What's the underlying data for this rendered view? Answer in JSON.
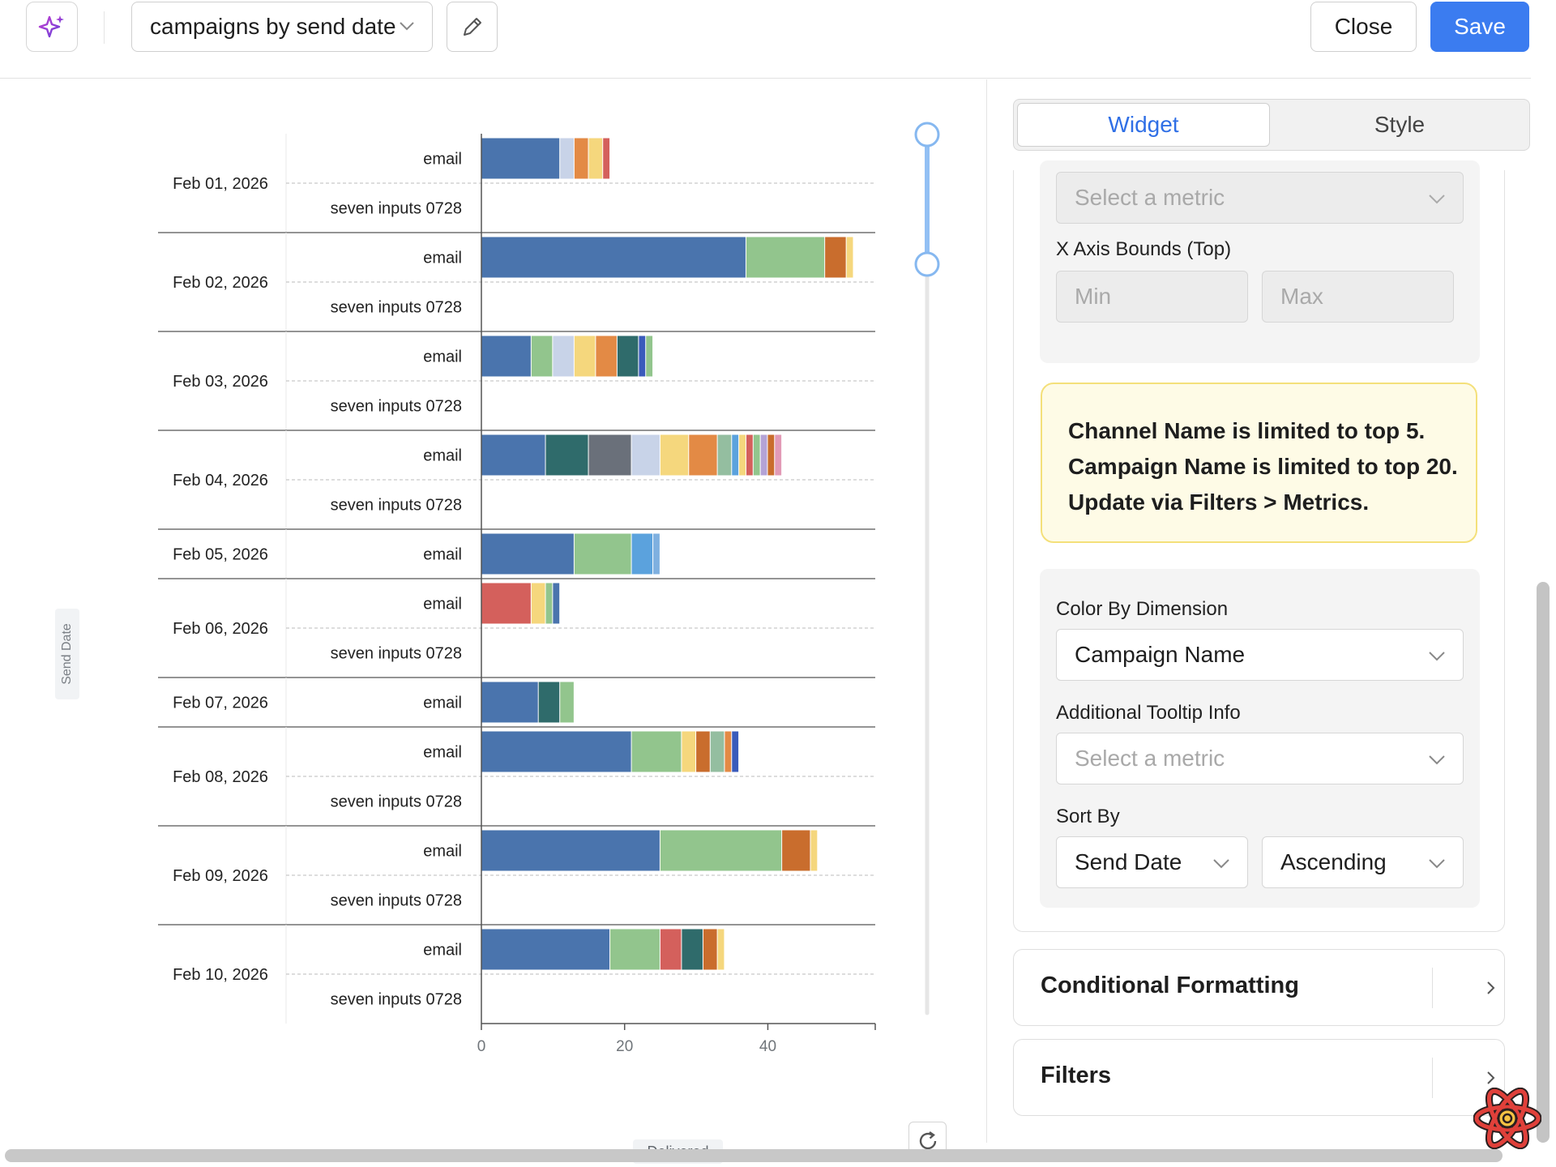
{
  "header": {
    "title": "campaigns by send date",
    "close_label": "Close",
    "save_label": "Save"
  },
  "colors": {
    "accent": "#3b7cf0",
    "warning_bg": "#fefbe6",
    "warning_border": "#f4e07a",
    "series_palette": [
      "#4a74ad",
      "#92c58d",
      "#c8d3e8",
      "#f5d77d",
      "#e38a45",
      "#c96d2d",
      "#2f6b6b",
      "#d4605c",
      "#6a707a",
      "#5ba2dd",
      "#b4a3d6",
      "#e29ab6",
      "#3a5bbb",
      "#94bea0"
    ]
  },
  "chart_data": {
    "type": "bar",
    "orientation": "horizontal",
    "stacked": true,
    "ylabel": "Send Date",
    "xlabel": "Delivered",
    "xlim": [
      0,
      55
    ],
    "x_ticks": [
      0,
      20,
      40
    ],
    "groups": [
      {
        "date": "Feb 01, 2026",
        "rows": [
          {
            "channel": "email",
            "segments": [
              11,
              2,
              2,
              2,
              1
            ],
            "colors": [
              "#4a74ad",
              "#c8d3e8",
              "#e38a45",
              "#f5d77d",
              "#d4605c"
            ]
          },
          {
            "channel": "seven inputs 0728",
            "segments": [],
            "colors": []
          }
        ]
      },
      {
        "date": "Feb 02, 2026",
        "rows": [
          {
            "channel": "email",
            "segments": [
              37,
              11,
              3,
              1
            ],
            "colors": [
              "#4a74ad",
              "#92c58d",
              "#c96d2d",
              "#f5d77d"
            ]
          },
          {
            "channel": "seven inputs 0728",
            "segments": [],
            "colors": []
          }
        ]
      },
      {
        "date": "Feb 03, 2026",
        "rows": [
          {
            "channel": "email",
            "segments": [
              7,
              3,
              3,
              3,
              3,
              3,
              1,
              1
            ],
            "colors": [
              "#4a74ad",
              "#92c58d",
              "#c8d3e8",
              "#f5d77d",
              "#e38a45",
              "#2f6b6b",
              "#3a5bbb",
              "#92c58d"
            ]
          },
          {
            "channel": "seven inputs 0728",
            "segments": [],
            "colors": []
          }
        ]
      },
      {
        "date": "Feb 04, 2026",
        "rows": [
          {
            "channel": "email",
            "segments": [
              9,
              6,
              6,
              4,
              4,
              4,
              2,
              1,
              1,
              1,
              1,
              1,
              1,
              1
            ],
            "colors": [
              "#4a74ad",
              "#2f6b6b",
              "#6a707a",
              "#c8d3e8",
              "#f5d77d",
              "#e38a45",
              "#94bea0",
              "#5ba2dd",
              "#f5d77d",
              "#d4605c",
              "#92c58d",
              "#b4a3d6",
              "#c96d2d",
              "#e29ab6"
            ]
          },
          {
            "channel": "seven inputs 0728",
            "segments": [],
            "colors": []
          }
        ]
      },
      {
        "date": "Feb 05, 2026",
        "rows": [
          {
            "channel": "email",
            "segments": [
              13,
              8,
              3,
              1
            ],
            "colors": [
              "#4a74ad",
              "#92c58d",
              "#5ba2dd",
              "#7fb0e0"
            ]
          }
        ]
      },
      {
        "date": "Feb 06, 2026",
        "rows": [
          {
            "channel": "email",
            "segments": [
              7,
              2,
              1,
              1
            ],
            "colors": [
              "#d4605c",
              "#f5d77d",
              "#92c58d",
              "#4a74ad"
            ]
          },
          {
            "channel": "seven inputs 0728",
            "segments": [],
            "colors": []
          }
        ]
      },
      {
        "date": "Feb 07, 2026",
        "rows": [
          {
            "channel": "email",
            "segments": [
              8,
              3,
              2
            ],
            "colors": [
              "#4a74ad",
              "#2f6b6b",
              "#92c58d"
            ]
          }
        ]
      },
      {
        "date": "Feb 08, 2026",
        "rows": [
          {
            "channel": "email",
            "segments": [
              21,
              7,
              2,
              2,
              2,
              1,
              1
            ],
            "colors": [
              "#4a74ad",
              "#92c58d",
              "#f5d77d",
              "#c96d2d",
              "#94bea0",
              "#e38a45",
              "#3a5bbb"
            ]
          },
          {
            "channel": "seven inputs 0728",
            "segments": [],
            "colors": []
          }
        ]
      },
      {
        "date": "Feb 09, 2026",
        "rows": [
          {
            "channel": "email",
            "segments": [
              25,
              17,
              4,
              1
            ],
            "colors": [
              "#4a74ad",
              "#92c58d",
              "#c96d2d",
              "#f5d77d"
            ]
          },
          {
            "channel": "seven inputs 0728",
            "segments": [],
            "colors": []
          }
        ]
      },
      {
        "date": "Feb 10, 2026",
        "rows": [
          {
            "channel": "email",
            "segments": [
              18,
              7,
              3,
              3,
              2,
              1
            ],
            "colors": [
              "#4a74ad",
              "#92c58d",
              "#d4605c",
              "#2f6b6b",
              "#c96d2d",
              "#f5d77d"
            ]
          },
          {
            "channel": "seven inputs 0728",
            "segments": [],
            "colors": []
          }
        ]
      }
    ]
  },
  "panel": {
    "tabs": [
      {
        "label": "Widget",
        "active": true
      },
      {
        "label": "Style",
        "active": false
      }
    ],
    "top_metric_placeholder": "Select a metric",
    "x_axis_bounds_label": "X Axis Bounds (Top)",
    "min_placeholder": "Min",
    "max_placeholder": "Max",
    "warning_lines": [
      "Channel Name is limited to top 5.",
      "Campaign Name is limited to top 20.",
      "Update via Filters > Metrics."
    ],
    "color_by_label": "Color By Dimension",
    "color_by_value": "Campaign Name",
    "tooltip_label": "Additional Tooltip Info",
    "tooltip_placeholder": "Select a metric",
    "sort_label": "Sort By",
    "sort_field_value": "Send Date",
    "sort_order_value": "Ascending",
    "conditional_formatting_label": "Conditional Formatting",
    "filters_label": "Filters"
  }
}
